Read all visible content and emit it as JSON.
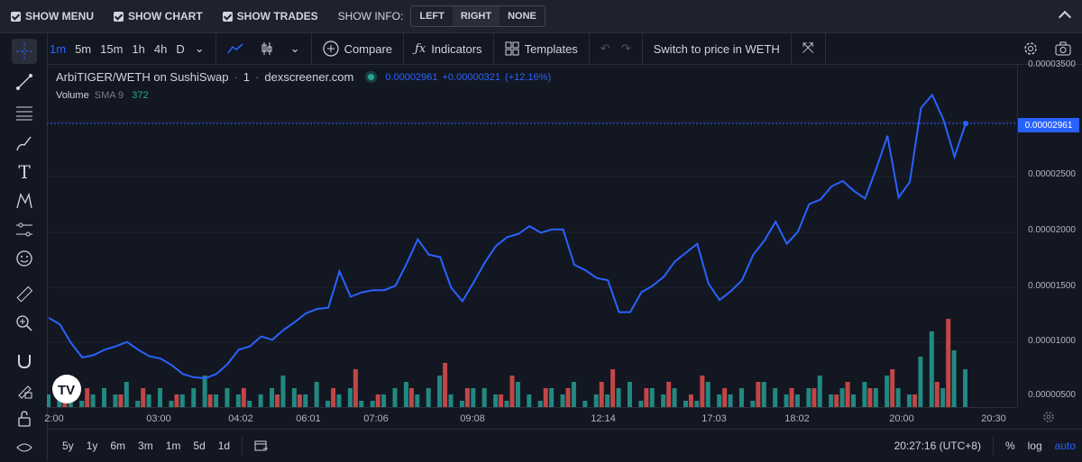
{
  "topbar": {
    "show_menu": "SHOW MENU",
    "show_chart": "SHOW CHART",
    "show_trades": "SHOW TRADES",
    "show_info": "SHOW INFO:",
    "info_options": [
      "LEFT",
      "RIGHT",
      "NONE"
    ],
    "info_selected": "RIGHT"
  },
  "toolbar": {
    "timeframes": [
      "1m",
      "5m",
      "15m",
      "1h",
      "4h",
      "D"
    ],
    "active_timeframe": "1m",
    "compare": "Compare",
    "indicators": "Indicators",
    "templates": "Templates",
    "switch": "Switch to price in WETH"
  },
  "legend": {
    "symbol": "ArbiTIGER/WETH on SushiSwap",
    "interval": "1",
    "source": "dexscreener.com",
    "price": "0.00002961",
    "change": "+0.00000321",
    "change_pct": "(+12.16%)",
    "volume_label": "Volume",
    "sma": "SMA 9",
    "sma_value": "372"
  },
  "price_axis": {
    "ticks": [
      "0.00003500",
      "0.00002500",
      "0.00002000",
      "0.00001500",
      "0.00001000",
      "0.00000500"
    ],
    "current": "0.00002961"
  },
  "time_axis": {
    "ticks": [
      "2:00",
      "03:00",
      "04:02",
      "06:01",
      "07:06",
      "09:08",
      "12:14",
      "17:03",
      "18:02",
      "20:00",
      "20:30"
    ]
  },
  "bottombar": {
    "ranges": [
      "5y",
      "1y",
      "6m",
      "3m",
      "1m",
      "5d",
      "1d"
    ],
    "clock": "20:27:16 (UTC+8)",
    "pct": "%",
    "log": "log",
    "auto": "auto"
  },
  "colors": {
    "line": "#2962ff",
    "up": "#26a69a",
    "down": "#ef5350",
    "bg": "#131722"
  },
  "chart_data": {
    "type": "line",
    "series": [
      {
        "values": [
          1.21,
          1.15,
          0.98,
          0.85,
          0.87,
          0.92,
          0.95,
          0.99,
          0.92,
          0.86,
          0.84,
          0.78,
          0.7,
          0.67,
          0.66,
          0.7,
          0.79,
          0.92,
          0.95,
          1.04,
          1.01,
          1.1,
          1.17,
          1.25,
          1.29,
          1.3,
          1.63,
          1.4,
          1.44,
          1.46,
          1.46,
          1.5,
          1.7,
          1.92,
          1.78,
          1.76,
          1.48,
          1.36,
          1.53,
          1.71,
          1.86,
          1.94,
          1.97,
          2.04,
          1.98,
          2.01,
          2.01,
          1.69,
          1.64,
          1.57,
          1.55,
          1.26,
          1.26,
          1.44,
          1.5,
          1.58,
          1.72,
          1.8,
          1.88,
          1.52,
          1.37,
          1.45,
          1.55,
          1.78,
          1.91,
          2.08,
          1.88,
          1.99,
          2.24,
          2.28,
          2.4,
          2.45,
          2.36,
          2.29,
          2.56,
          2.86,
          2.3,
          2.44,
          3.11,
          3.23,
          3.01,
          2.67,
          2.97
        ]
      }
    ],
    "volume_up": [
      2,
      3,
      2,
      1,
      2,
      3,
      2,
      4,
      1,
      2,
      3,
      1,
      2,
      3,
      5,
      2,
      3,
      2,
      1,
      2,
      3,
      5,
      3,
      2,
      4,
      1,
      2,
      3,
      1,
      1,
      2,
      3,
      4,
      2,
      3,
      5,
      2,
      1,
      3,
      3,
      2,
      1,
      4,
      2,
      1,
      3,
      2,
      4,
      1,
      2,
      2,
      3,
      4,
      1,
      3,
      2,
      3,
      1,
      1,
      4,
      2,
      2,
      3,
      1,
      4,
      3,
      2,
      2,
      3,
      5,
      2,
      3,
      2,
      4,
      3,
      5,
      3,
      2,
      8,
      12,
      3,
      9,
      6
    ],
    "volume_down": [
      0,
      2,
      0,
      3,
      0,
      0,
      2,
      0,
      3,
      0,
      0,
      2,
      0,
      0,
      2,
      0,
      0,
      3,
      0,
      0,
      2,
      0,
      2,
      0,
      0,
      3,
      0,
      6,
      0,
      2,
      0,
      0,
      3,
      0,
      0,
      7,
      0,
      3,
      0,
      0,
      2,
      5,
      0,
      0,
      3,
      0,
      3,
      0,
      0,
      4,
      6,
      0,
      0,
      3,
      0,
      4,
      0,
      2,
      5,
      0,
      3,
      0,
      0,
      4,
      0,
      0,
      3,
      0,
      3,
      0,
      2,
      4,
      0,
      3,
      0,
      6,
      0,
      2,
      0,
      4,
      14,
      0,
      0
    ]
  }
}
